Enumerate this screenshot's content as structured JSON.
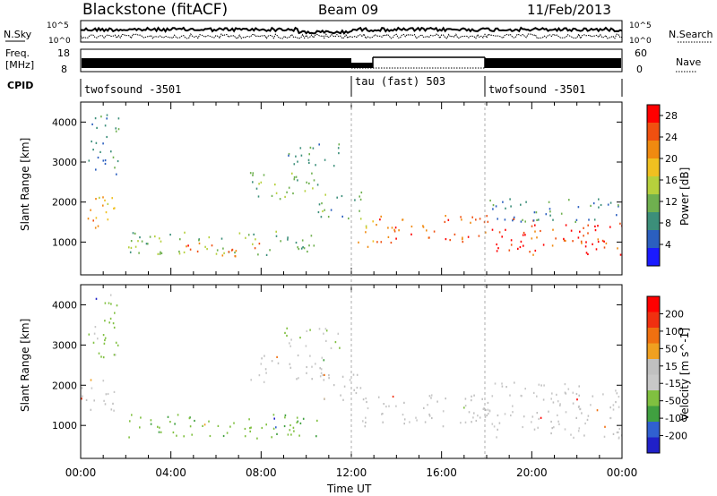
{
  "header": {
    "station": "Blackstone (fitACF)",
    "beam": "Beam 09",
    "date": "11/Feb/2013"
  },
  "top_panels": {
    "nsky_label": "N.Sky",
    "nsky_ticks": [
      "10^5",
      "10^0"
    ],
    "nsearch_label": "N.Search",
    "nsearch_ticks": [
      "10^5",
      "10^0"
    ],
    "freq_label_line1": "Freq.",
    "freq_label_line2": "[MHz]",
    "freq_ticks": [
      "18",
      "8"
    ],
    "nave_label": "Nave",
    "nave_ticks": [
      "60",
      "0"
    ],
    "cpid_label": "CPID",
    "cpid_segments": [
      {
        "label": "twofsound -3501",
        "start_h": 0,
        "end_h": 12
      },
      {
        "label": "tau (fast) 503",
        "start_h": 12,
        "end_h": 18
      },
      {
        "label": "twofsound -3501",
        "start_h": 18,
        "end_h": 24
      }
    ]
  },
  "colors": {
    "power_scale": [
      "#1a1aff",
      "#2b5fbf",
      "#3c8f7a",
      "#6fb04f",
      "#b6d03c",
      "#f0c020",
      "#f08a10",
      "#f05010",
      "#ff0000"
    ],
    "velocity_scale": [
      "#2020c8",
      "#3060d0",
      "#40a040",
      "#80c040",
      "#c8c8c8",
      "#c0c0c0",
      "#f0a020",
      "#f07010",
      "#f03010",
      "#ff0000"
    ]
  },
  "chart_data": [
    {
      "type": "heatmap",
      "name": "power-panel",
      "xlabel": "",
      "ylabel": "Slant Range [km]",
      "x_range_h": [
        0,
        24
      ],
      "ylim": [
        180,
        4500
      ],
      "yticks": [
        "1000",
        "2000",
        "3000",
        "4000"
      ],
      "colorbar": {
        "label": "Power [dB]",
        "ticks": [
          "4",
          "8",
          "12",
          "16",
          "20",
          "24",
          "28"
        ],
        "range": [
          0,
          30
        ]
      },
      "regions": [
        {
          "t0": 0.0,
          "t1": 1.5,
          "r0": 1300,
          "r1": 2200,
          "level": 20
        },
        {
          "t0": 0.3,
          "t1": 1.7,
          "r0": 2700,
          "r1": 4300,
          "level": 8
        },
        {
          "t0": 2.0,
          "t1": 10.5,
          "r0": 700,
          "r1": 1300,
          "level": 12
        },
        {
          "t0": 4.5,
          "t1": 8.0,
          "r0": 650,
          "r1": 1000,
          "level": 24
        },
        {
          "t0": 7.5,
          "t1": 10.8,
          "r0": 2100,
          "r1": 2800,
          "level": 12
        },
        {
          "t0": 9.0,
          "t1": 11.5,
          "r0": 2900,
          "r1": 3500,
          "level": 8
        },
        {
          "t0": 10.5,
          "t1": 12.5,
          "r0": 1600,
          "r1": 2300,
          "level": 10
        },
        {
          "t0": 12.2,
          "t1": 13.0,
          "r0": 900,
          "r1": 1700,
          "level": 20
        },
        {
          "t0": 13.0,
          "t1": 18.0,
          "r0": 1000,
          "r1": 1700,
          "level": 24
        },
        {
          "t0": 18.0,
          "t1": 24.0,
          "r0": 700,
          "r1": 1600,
          "level": 26
        },
        {
          "t0": 18.0,
          "t1": 24.0,
          "r0": 1500,
          "r1": 2100,
          "level": 8
        }
      ]
    },
    {
      "type": "heatmap",
      "name": "velocity-panel",
      "xlabel": "Time UT",
      "ylabel": "Slant Range [km]",
      "x_range_h": [
        0,
        24
      ],
      "xticks": [
        "00:00",
        "04:00",
        "08:00",
        "12:00",
        "16:00",
        "20:00",
        "00:00"
      ],
      "ylim": [
        180,
        4500
      ],
      "yticks": [
        "1000",
        "2000",
        "3000",
        "4000"
      ],
      "colorbar": {
        "label": "Velocity [m s^-1]",
        "ticks": [
          "200",
          "100",
          "50",
          "15",
          "-15",
          "-50",
          "-100",
          "-200"
        ],
        "range": [
          -250,
          250
        ]
      },
      "regions": [
        {
          "t0": 0.0,
          "t1": 1.5,
          "r0": 1300,
          "r1": 2200,
          "level": 0
        },
        {
          "t0": 0.3,
          "t1": 1.7,
          "r0": 2700,
          "r1": 4300,
          "level": -60
        },
        {
          "t0": 2.0,
          "t1": 10.5,
          "r0": 700,
          "r1": 1300,
          "level": -80
        },
        {
          "t0": 7.5,
          "t1": 10.8,
          "r0": 2100,
          "r1": 2800,
          "level": 0
        },
        {
          "t0": 9.0,
          "t1": 11.5,
          "r0": 2900,
          "r1": 3500,
          "level": -40
        },
        {
          "t0": 10.5,
          "t1": 12.5,
          "r0": 1600,
          "r1": 2300,
          "level": 30
        },
        {
          "t0": 12.2,
          "t1": 13.0,
          "r0": 900,
          "r1": 1700,
          "level": 20
        },
        {
          "t0": 13.0,
          "t1": 18.0,
          "r0": 1000,
          "r1": 1800,
          "level": 0
        },
        {
          "t0": 18.0,
          "t1": 24.0,
          "r0": 700,
          "r1": 2100,
          "level": -10
        }
      ]
    }
  ]
}
